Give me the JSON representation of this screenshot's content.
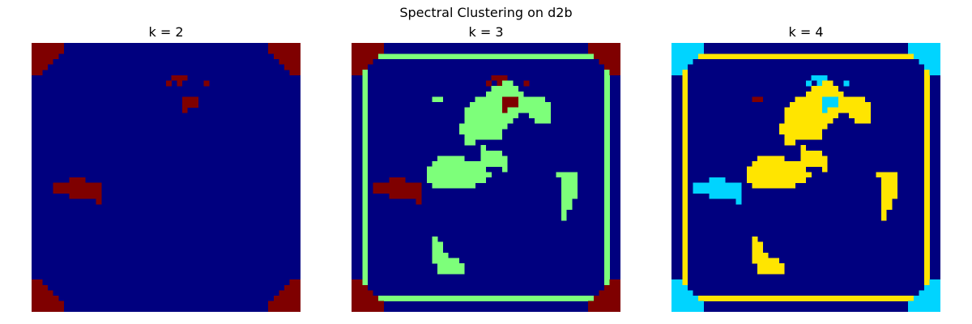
{
  "figure": {
    "title": "Spectral Clustering on d2b"
  },
  "colors": {
    "dark_blue": "#00007f",
    "dark_red": "#7f0000",
    "light_green": "#7dff7a",
    "yellow": "#ffe500",
    "cyan": "#00d4ff"
  },
  "chart_data": [
    {
      "type": "heatmap",
      "title": "k = 2",
      "grid": false,
      "axes_visible": false,
      "palette": [
        "#00007f",
        "#7f0000"
      ],
      "resolution": 50,
      "regions": {
        "outer_border_cluster": 1,
        "outer_corners_cluster": 1,
        "inner_frame_cluster": 0,
        "blob_cluster": 0,
        "blob_left_cluster": 1,
        "blob_topright_cluster": 1,
        "blob_eye_cluster": 0
      }
    },
    {
      "type": "heatmap",
      "title": "k = 3",
      "grid": false,
      "axes_visible": false,
      "palette": [
        "#00007f",
        "#7dff7a",
        "#7f0000"
      ],
      "resolution": 50,
      "regions": {
        "outer_corners_cluster": 2,
        "inner_frame_cluster": 1,
        "blob_cluster": 1,
        "blob_left_cluster": 2,
        "blob_topright_cluster": 2,
        "blob_eye_cluster": 1
      }
    },
    {
      "type": "heatmap",
      "title": "k = 4",
      "grid": false,
      "axes_visible": false,
      "palette": [
        "#00007f",
        "#ffe500",
        "#00d4ff",
        "#7f0000"
      ],
      "resolution": 50,
      "regions": {
        "outer_corners_cluster": 2,
        "inner_frame_cluster": 1,
        "blob_cluster": 1,
        "blob_left_cluster": 2,
        "blob_topright_cluster": 2,
        "blob_eye_cluster": 3
      }
    }
  ]
}
